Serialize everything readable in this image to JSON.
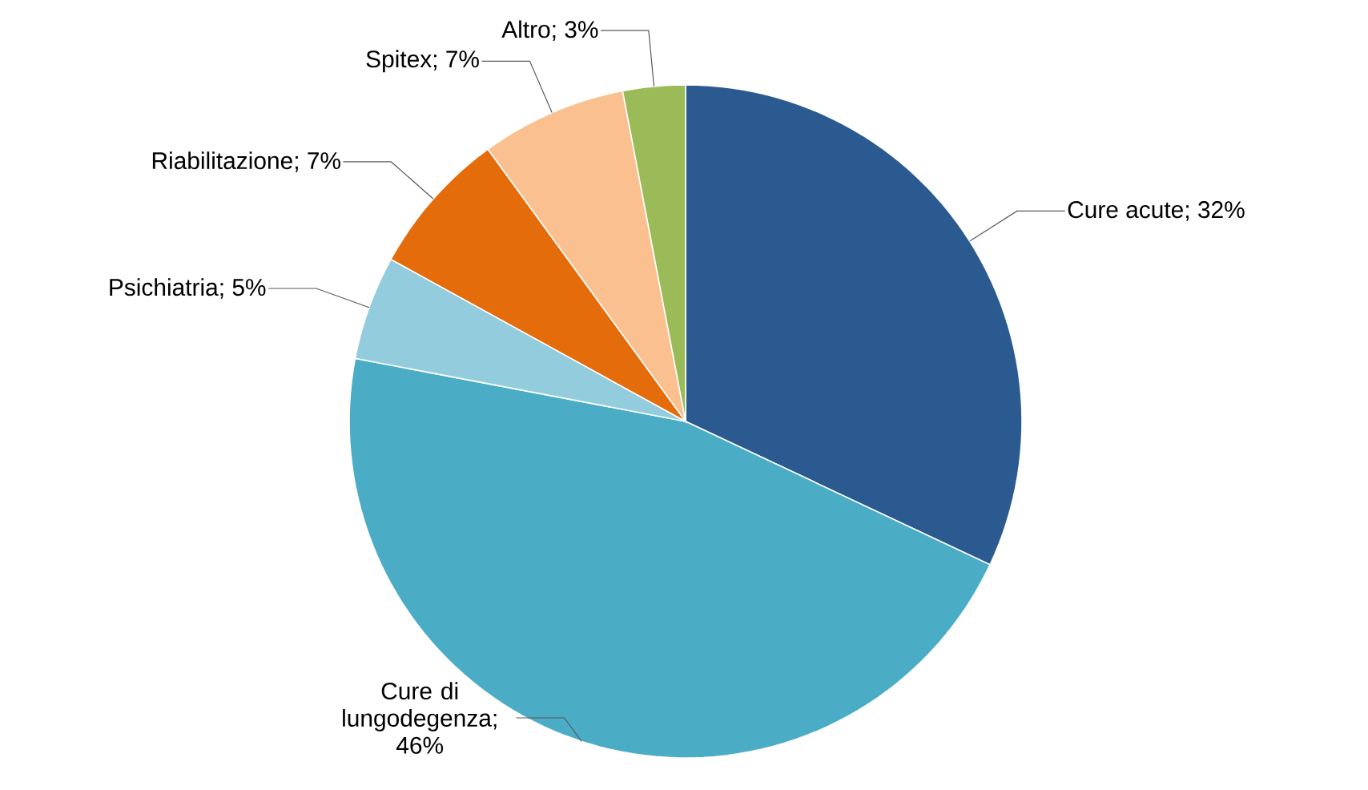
{
  "chart_data": {
    "type": "pie",
    "categories": [
      "Cure acute",
      "Cure di lungodegenza",
      "Psichiatria",
      "Riabilitazione",
      "Spitex",
      "Altro"
    ],
    "values": [
      32,
      46,
      5,
      7,
      7,
      3
    ],
    "value_labels": [
      "; 32%",
      "; 46%",
      "; 5%",
      "; 7%",
      "; 7%",
      "; 3%"
    ],
    "colors": [
      "#2a5a8f",
      "#4bacc6",
      "#93cddd",
      "#e46c0a",
      "#fac090",
      "#9bbb59"
    ]
  }
}
